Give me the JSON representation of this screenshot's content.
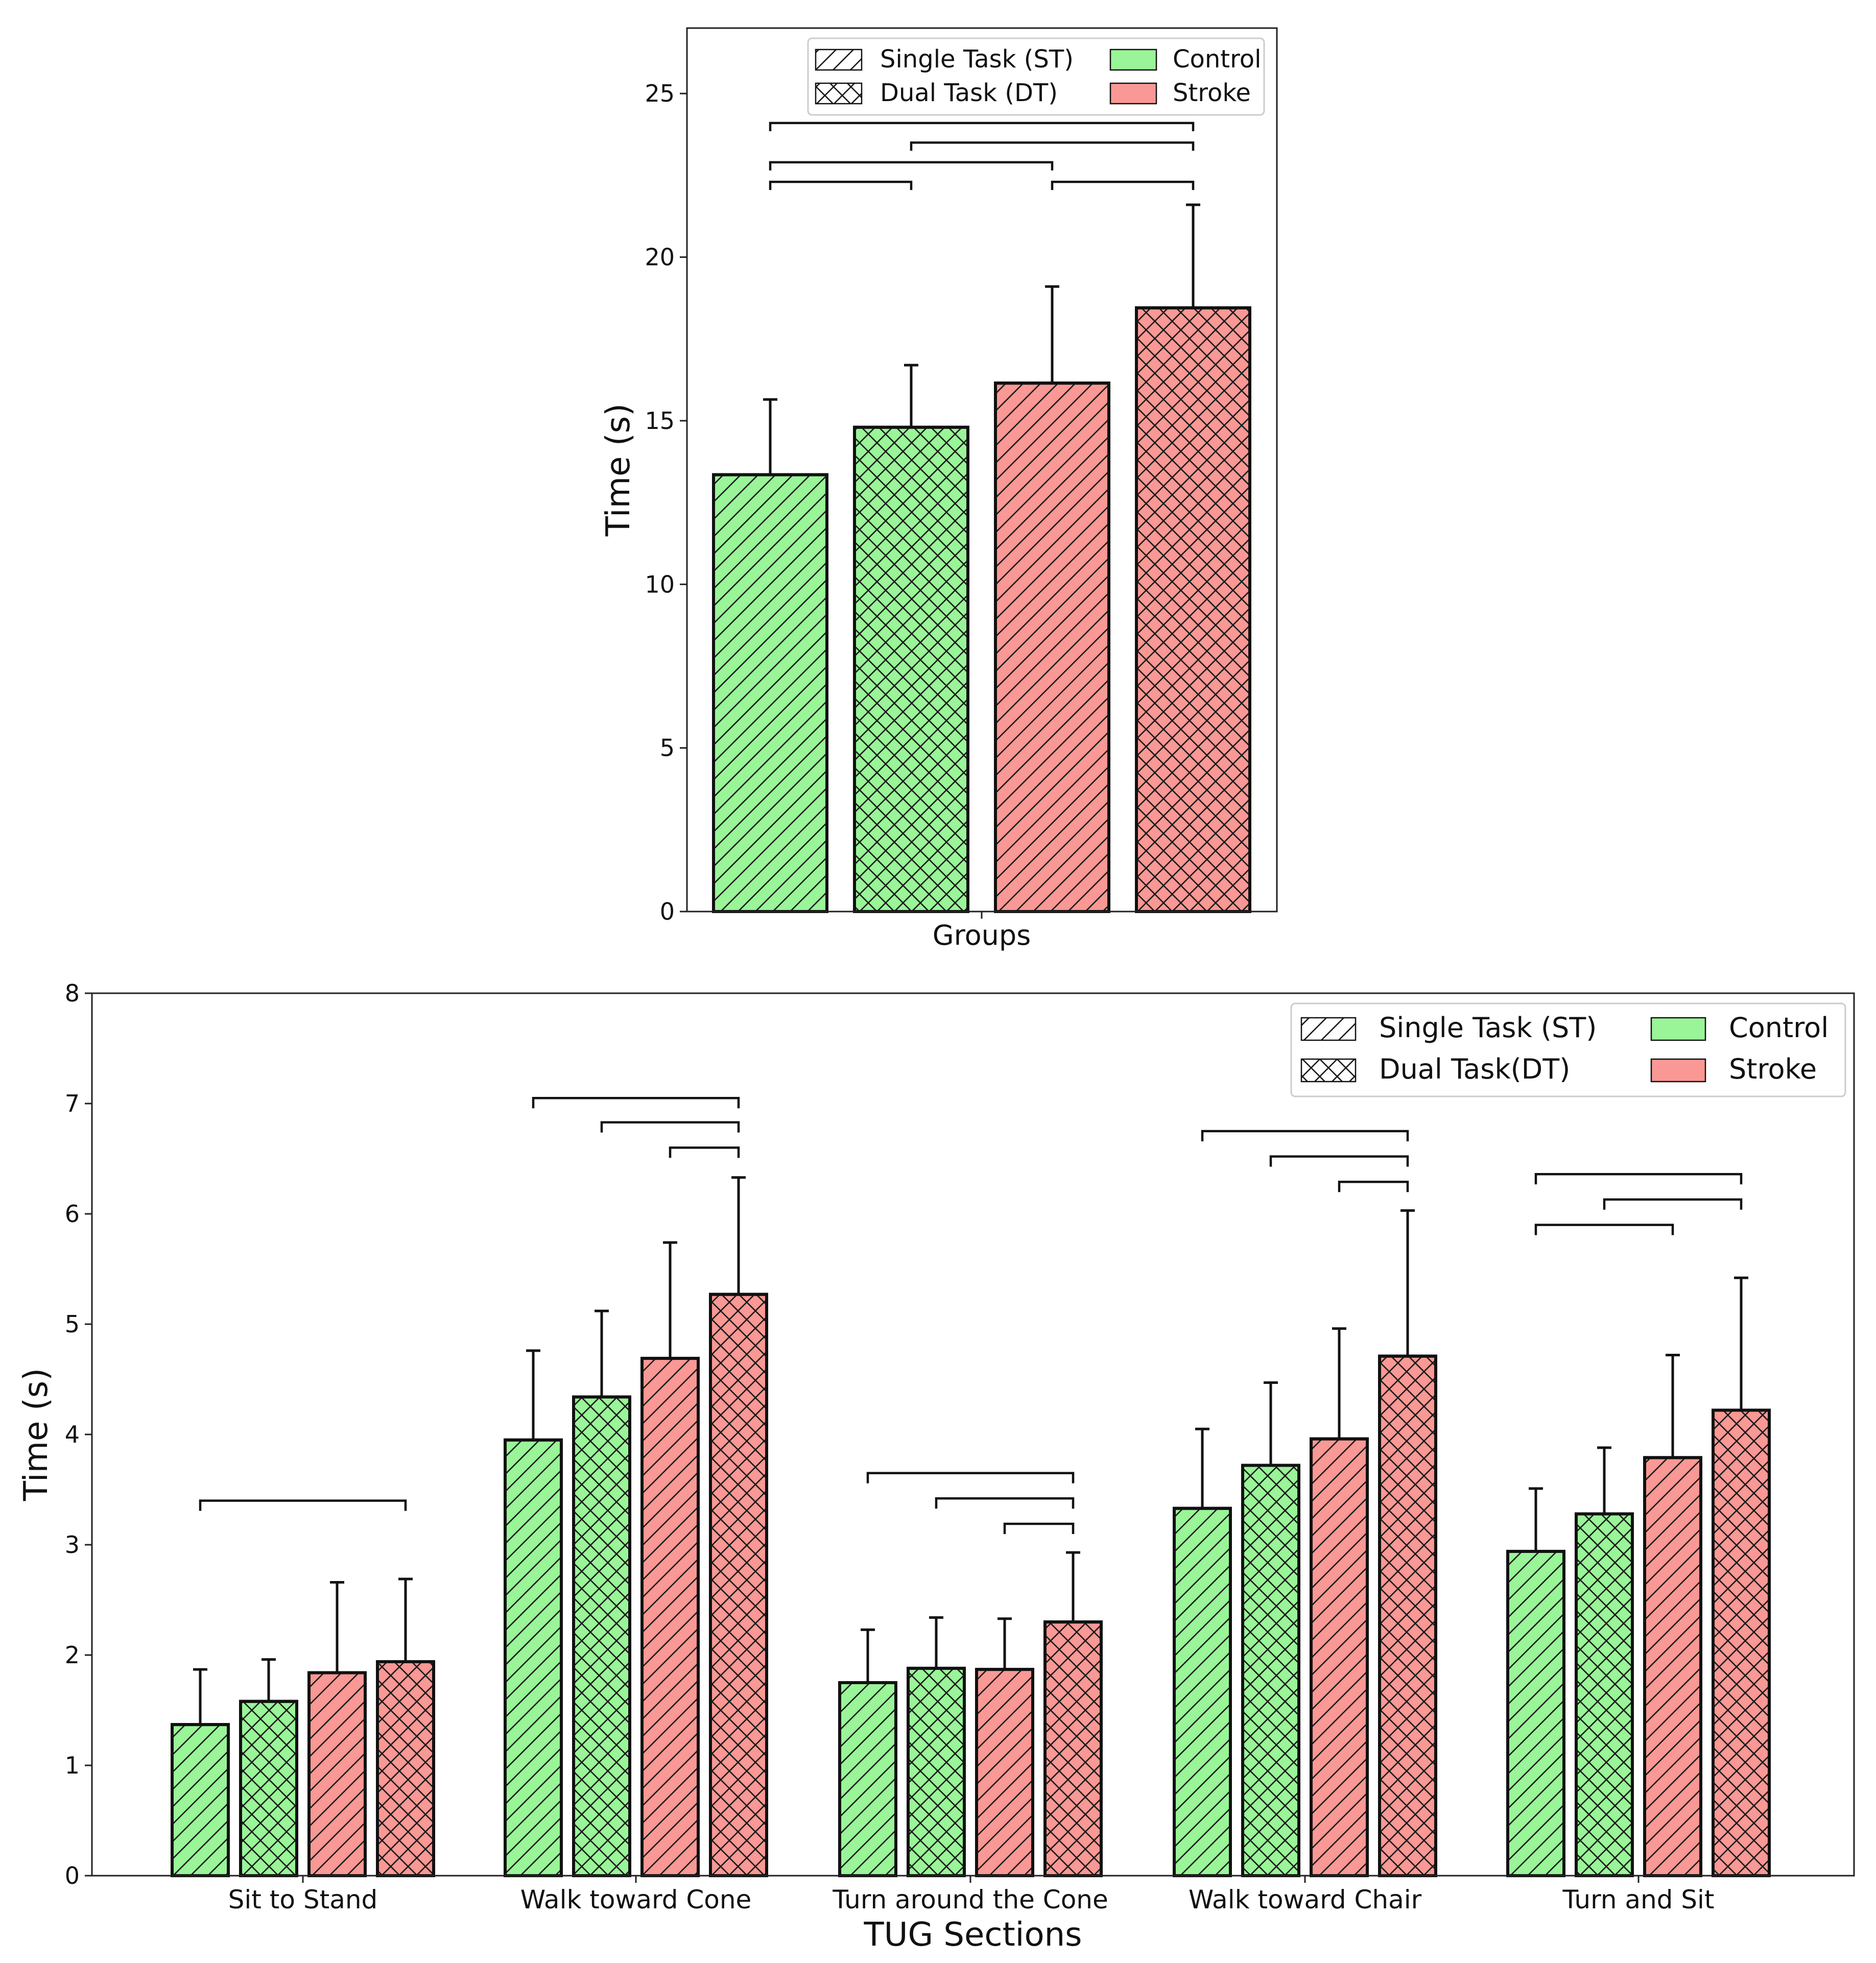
{
  "colors": {
    "control": "#99f598",
    "stroke": "#f99894",
    "hatch": "#1a1a1a"
  },
  "legend": {
    "top": {
      "patterns": [
        {
          "label": "Single Task (ST)",
          "pattern": "single"
        },
        {
          "label": "Dual Task (DT)",
          "pattern": "dual"
        }
      ],
      "groups": [
        {
          "label": "Control",
          "group": "control"
        },
        {
          "label": "Stroke",
          "group": "stroke"
        }
      ]
    },
    "bottom": {
      "patterns": [
        {
          "label": "Single Task (ST)",
          "pattern": "single"
        },
        {
          "label": "Dual Task(DT)",
          "pattern": "dual"
        }
      ],
      "groups": [
        {
          "label": "Control",
          "group": "control"
        },
        {
          "label": "Stroke",
          "group": "stroke"
        }
      ]
    }
  },
  "chart_data": [
    {
      "type": "bar",
      "title": "",
      "xlabel": "Groups",
      "ylabel": "Time (s)",
      "ylim": [
        0,
        27
      ],
      "yticks": [
        0,
        5,
        10,
        15,
        20,
        25
      ],
      "categories": [
        ""
      ],
      "series": [
        {
          "name": "Control ST",
          "group": "control",
          "pattern": "single",
          "values": [
            13.35
          ],
          "errors": [
            2.3
          ]
        },
        {
          "name": "Control DT",
          "group": "control",
          "pattern": "dual",
          "values": [
            14.8
          ],
          "errors": [
            1.9
          ]
        },
        {
          "name": "Stroke ST",
          "group": "stroke",
          "pattern": "single",
          "values": [
            16.15
          ],
          "errors": [
            2.95
          ]
        },
        {
          "name": "Stroke DT",
          "group": "stroke",
          "pattern": "dual",
          "values": [
            18.45
          ],
          "errors": [
            3.15
          ]
        }
      ],
      "significance": [
        {
          "category": 0,
          "from": 0,
          "to": 3,
          "y": 24.1
        },
        {
          "category": 0,
          "from": 1,
          "to": 3,
          "y": 23.5
        },
        {
          "category": 0,
          "from": 0,
          "to": 2,
          "y": 22.9
        },
        {
          "category": 0,
          "from": 0,
          "to": 1,
          "y": 22.3
        },
        {
          "category": 0,
          "from": 2,
          "to": 3,
          "y": 22.3
        }
      ]
    },
    {
      "type": "bar",
      "title": "",
      "xlabel": "TUG Sections",
      "ylabel": "Time (s)",
      "ylim": [
        0,
        8
      ],
      "yticks": [
        0,
        1,
        2,
        3,
        4,
        5,
        6,
        7,
        8
      ],
      "categories": [
        "Sit to Stand",
        "Walk toward Cone",
        "Turn around the Cone",
        "Walk toward Chair",
        "Turn and Sit"
      ],
      "series": [
        {
          "name": "Control ST",
          "group": "control",
          "pattern": "single",
          "values": [
            1.37,
            3.95,
            1.75,
            3.33,
            2.94
          ],
          "errors": [
            0.5,
            0.81,
            0.48,
            0.72,
            0.57
          ]
        },
        {
          "name": "Control DT",
          "group": "control",
          "pattern": "dual",
          "values": [
            1.58,
            4.34,
            1.88,
            3.72,
            3.28
          ],
          "errors": [
            0.38,
            0.78,
            0.46,
            0.75,
            0.6
          ]
        },
        {
          "name": "Stroke ST",
          "group": "stroke",
          "pattern": "single",
          "values": [
            1.84,
            4.69,
            1.87,
            3.96,
            3.79
          ],
          "errors": [
            0.82,
            1.05,
            0.46,
            1.0,
            0.93
          ]
        },
        {
          "name": "Stroke DT",
          "group": "stroke",
          "pattern": "dual",
          "values": [
            1.94,
            5.27,
            2.3,
            4.71,
            4.22
          ],
          "errors": [
            0.75,
            1.06,
            0.63,
            1.32,
            1.2
          ]
        }
      ],
      "significance": [
        {
          "category": 0,
          "from": 0,
          "to": 3,
          "y": 3.4
        },
        {
          "category": 1,
          "from": 0,
          "to": 3,
          "y": 7.05
        },
        {
          "category": 1,
          "from": 1,
          "to": 3,
          "y": 6.83
        },
        {
          "category": 1,
          "from": 2,
          "to": 3,
          "y": 6.6
        },
        {
          "category": 2,
          "from": 0,
          "to": 3,
          "y": 3.65
        },
        {
          "category": 2,
          "from": 1,
          "to": 3,
          "y": 3.42
        },
        {
          "category": 2,
          "from": 2,
          "to": 3,
          "y": 3.19
        },
        {
          "category": 3,
          "from": 0,
          "to": 3,
          "y": 6.75
        },
        {
          "category": 3,
          "from": 1,
          "to": 3,
          "y": 6.52
        },
        {
          "category": 3,
          "from": 2,
          "to": 3,
          "y": 6.29
        },
        {
          "category": 4,
          "from": 0,
          "to": 3,
          "y": 6.36
        },
        {
          "category": 4,
          "from": 1,
          "to": 3,
          "y": 6.13
        },
        {
          "category": 4,
          "from": 0,
          "to": 2,
          "y": 5.9
        }
      ]
    }
  ]
}
